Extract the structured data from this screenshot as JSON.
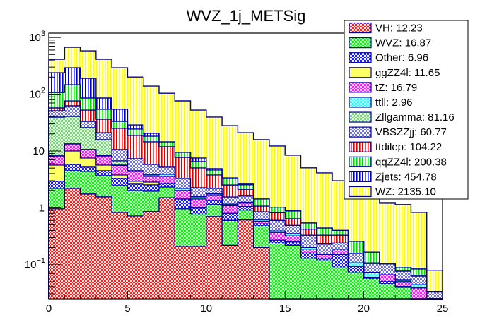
{
  "chart_data": {
    "type": "bar",
    "stacked": true,
    "histogram": true,
    "title": "WVZ_1j_METSig",
    "xlabel": "",
    "ylabel": "",
    "xlim": [
      0,
      25
    ],
    "ylim": [
      0.0245,
      1190
    ],
    "yscale": "log",
    "bin_edges": [
      0,
      1,
      2,
      3,
      4,
      5,
      6,
      7,
      8,
      9,
      10,
      11,
      12,
      13,
      14,
      15,
      16,
      17,
      18,
      19,
      20,
      21,
      22,
      23,
      24,
      25
    ],
    "x_ticks": [
      0,
      5,
      10,
      15,
      20,
      25
    ],
    "x_tick_labels": [
      "0",
      "5",
      "10",
      "15",
      "20",
      "25"
    ],
    "y_ticks": [
      0.1,
      1,
      10,
      100,
      1000
    ],
    "y_tick_labels": [
      {
        "base": "10",
        "exp": "−1"
      },
      {
        "base": "1",
        "exp": ""
      },
      {
        "base": "10",
        "exp": ""
      },
      {
        "base": "10",
        "exp": "2"
      },
      {
        "base": "10",
        "exp": "3"
      }
    ],
    "grid": false,
    "legend_position": "top-right",
    "series": [
      {
        "name": "VH",
        "legend": "VH: 12.23",
        "color": "#cc3333",
        "pattern": "checker",
        "values": [
          0.96,
          2.2,
          1.75,
          1.56,
          0.83,
          0.72,
          0.86,
          1.51,
          0.21,
          0.21,
          0.7,
          0.22,
          0.61,
          0.2,
          0,
          0,
          0,
          0,
          0,
          0,
          0,
          0,
          0,
          0,
          0
        ]
      },
      {
        "name": "WVZ",
        "legend": "WVZ: 16.87",
        "color": "#33dd33",
        "pattern": "checker",
        "values": [
          1.24,
          2.29,
          2.61,
          2.11,
          1.63,
          1.29,
          1.1,
          0.81,
          0.75,
          0.56,
          0.44,
          0.38,
          0.3,
          0.28,
          0.24,
          0.22,
          0.13,
          0.12,
          0.09,
          0.073,
          0.056,
          0.046,
          0.04,
          0,
          0
        ]
      },
      {
        "name": "Other",
        "legend": "Other: 6.96",
        "color": "#2222cc",
        "pattern": "checker",
        "values": [
          0.73,
          1.32,
          0.82,
          0.82,
          0.82,
          0.6,
          0.57,
          0.36,
          0.47,
          0.22,
          0.21,
          0.2,
          0.14,
          0.04,
          0.03,
          0.03,
          0.03,
          0.01,
          0.06,
          0.019,
          0.003,
          0.004,
          0.001,
          0,
          0
        ]
      },
      {
        "name": "ggZZ4l",
        "legend": "ggZZ4l: 11.65",
        "color": "#ffff66",
        "pattern": "solid",
        "values": [
          2.72,
          4.19,
          2.33,
          1.16,
          0.5,
          0.32,
          0.31,
          0,
          0,
          0.02,
          0,
          0,
          0,
          0,
          0,
          0,
          0,
          0,
          0,
          0,
          0,
          0,
          0,
          0,
          0
        ]
      },
      {
        "name": "tZ",
        "legend": "tZ: 16.79",
        "color": "#dd33dd",
        "pattern": "checker",
        "values": [
          2.53,
          3.3,
          3.09,
          2.53,
          1.71,
          1.43,
          0.73,
          0.89,
          0.58,
          0.42,
          0.3,
          0.29,
          0.16,
          0.06,
          0.1,
          0.07,
          0.02,
          0.02,
          0.03,
          0,
          0,
          0.017,
          0.008,
          0.039,
          0
        ]
      },
      {
        "name": "ttll",
        "legend": "ttll: 2.96",
        "color": "#55eeee",
        "pattern": "checker",
        "values": [
          0,
          0,
          0,
          0.24,
          0.16,
          0,
          0.21,
          0.32,
          0.19,
          0.13,
          0.1,
          0.07,
          0.04,
          0.04,
          0.02,
          0.03,
          0.02,
          0,
          0,
          0.017,
          0.013,
          0,
          0.004,
          0.006,
          0
        ]
      },
      {
        "name": "Zllgamma",
        "legend": "Zllgamma: 81.16",
        "color": "#88cc88",
        "pattern": "checker",
        "values": [
          31.3,
          27.3,
          15.1,
          7.38,
          1.05,
          0.13,
          0,
          0,
          0,
          0,
          0,
          0,
          0,
          0,
          0,
          0,
          0,
          0,
          0,
          0,
          0,
          0,
          0,
          0,
          0
        ]
      },
      {
        "name": "VBSZZjj",
        "legend": "VBSZZjj: 60.77",
        "color": "#7777bb",
        "pattern": "checker",
        "values": [
          11.6,
          21.8,
          7.5,
          5.2,
          3.9,
          2.81,
          2.03,
          1.29,
          1.08,
          0.7,
          0.45,
          0.39,
          0.36,
          0.23,
          0.21,
          0.14,
          0.13,
          0.08,
          0.06,
          0.049,
          0.033,
          0.036,
          0.024,
          0.018,
          0.033
        ]
      },
      {
        "name": "ttdilep",
        "legend": "ttdilep: 104.22",
        "color": "#dd0000",
        "pattern": "vlines",
        "values": [
          6.2,
          13.8,
          19.3,
          15.2,
          14.4,
          11.5,
          8.7,
          6.7,
          4.44,
          2.77,
          1.58,
          0.97,
          0.47,
          0.22,
          0.22,
          0.15,
          0.09,
          0.1,
          0.09,
          0,
          0,
          0,
          0,
          0,
          0
        ]
      },
      {
        "name": "qqZZ4l",
        "legend": "qqZZ4l: 200.38",
        "color": "#00dd00",
        "pattern": "vlines",
        "values": [
          49.7,
          70.8,
          33.0,
          17.9,
          8.2,
          5.5,
          3.7,
          2.6,
          1.72,
          1.48,
          0.84,
          0.75,
          0.46,
          0.36,
          0.2,
          0.24,
          0.12,
          0.11,
          0.07,
          0.099,
          0.061,
          0,
          0.012,
          0.021,
          0
        ]
      },
      {
        "name": "Zjets",
        "legend": "Zjets: 454.78",
        "color": "#0000cc",
        "pattern": "vlines",
        "values": [
          132,
          145,
          104.5,
          31.4,
          20.9,
          4.5,
          2.3,
          0,
          0,
          1.0,
          0.27,
          0.09,
          0.08,
          0,
          0,
          0,
          0,
          0,
          0,
          0,
          0,
          0,
          0,
          0,
          0
        ]
      },
      {
        "name": "WZ",
        "legend": "WZ: 2135.10",
        "color": "#ffff00",
        "pattern": "vlines",
        "values": [
          173,
          378,
          391,
          326.5,
          238,
          172,
          118.5,
          89.5,
          66.8,
          45,
          34.6,
          24.6,
          18.4,
          14.4,
          11.2,
          7.54,
          4.51,
          3.68,
          2.6,
          2.06,
          1.58,
          1.1,
          1.05,
          0.746,
          0.047
        ]
      }
    ]
  },
  "colors": {
    "outline": "#000099",
    "frame": "#000000"
  }
}
